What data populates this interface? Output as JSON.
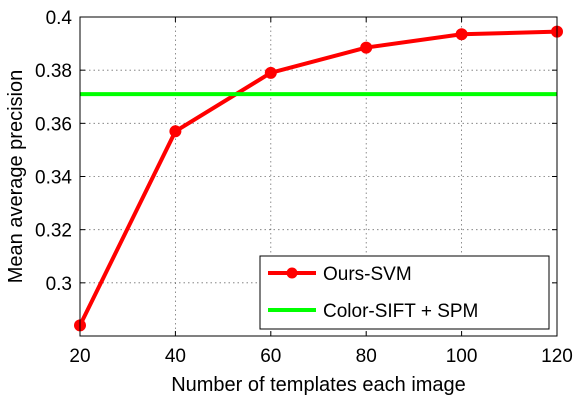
{
  "chart_data": {
    "type": "line",
    "xlabel": "Number of templates each image",
    "ylabel": "Mean average precision",
    "xlim": [
      20,
      120
    ],
    "ylim": [
      0.28,
      0.4
    ],
    "xticks": [
      20,
      40,
      60,
      80,
      100,
      120
    ],
    "yticks": [
      0.3,
      0.32,
      0.34,
      0.36,
      0.38,
      0.4
    ],
    "ytick_labels": [
      "0.3",
      "0.32",
      "0.34",
      "0.36",
      "0.38",
      "0.4"
    ],
    "grid": true,
    "legend_position": "bottom-right",
    "series": [
      {
        "name": "Ours-SVM",
        "color": "#ff0000",
        "marker": "circle",
        "x": [
          20,
          40,
          60,
          80,
          100,
          120
        ],
        "y": [
          0.284,
          0.357,
          0.379,
          0.3885,
          0.3935,
          0.3945
        ]
      },
      {
        "name": "Color-SIFT + SPM",
        "color": "#00ff00",
        "marker": "none",
        "x": [
          20,
          120
        ],
        "y": [
          0.371,
          0.371
        ]
      }
    ]
  }
}
